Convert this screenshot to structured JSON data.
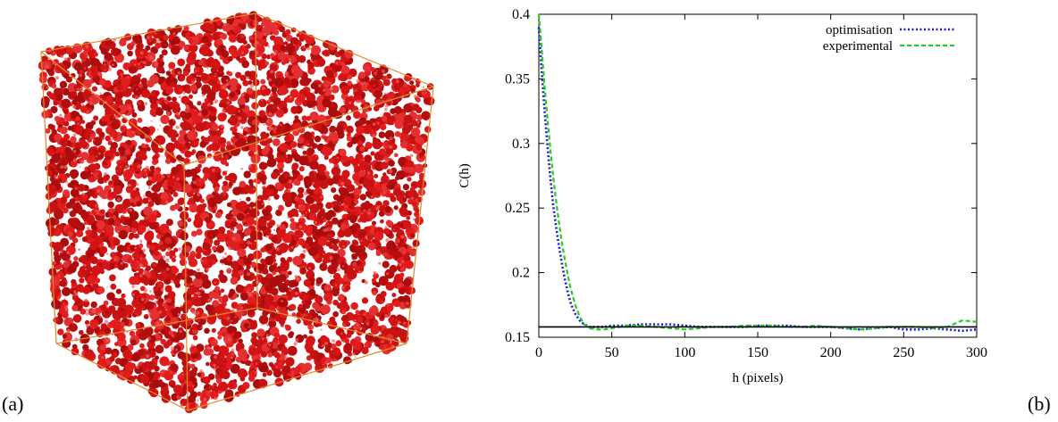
{
  "panels": {
    "a_label": "(a)",
    "b_label": "(b)"
  },
  "render": {
    "subject": "3d-porous-microstructure-cube",
    "fill_color": "#d41414",
    "edge_color": "#e08a2c"
  },
  "chart_data": {
    "type": "line",
    "xlabel": "h (pixels)",
    "ylabel": "C(h)",
    "xlim": [
      0,
      300
    ],
    "ylim": [
      0.15,
      0.4
    ],
    "xticks": [
      0,
      50,
      100,
      150,
      200,
      250,
      300
    ],
    "yticks": [
      0.15,
      0.2,
      0.25,
      0.3,
      0.35,
      0.4
    ],
    "ytick_labels": [
      "0.15",
      "0.2",
      "0.25",
      "0.3",
      "0.35",
      "0.4"
    ],
    "legend_position": "top-right",
    "series": [
      {
        "name": "optimisation",
        "color": "#1a1ad0",
        "dash": "dotted",
        "x": [
          0,
          2,
          4,
          6,
          8,
          10,
          12,
          14,
          16,
          18,
          20,
          22,
          25,
          28,
          31,
          35,
          40,
          45,
          50,
          60,
          70,
          80,
          90,
          100,
          110,
          120,
          130,
          140,
          150,
          160,
          170,
          180,
          190,
          200,
          210,
          220,
          230,
          240,
          250,
          260,
          270,
          280,
          290,
          300
        ],
        "y": [
          0.39,
          0.355,
          0.325,
          0.297,
          0.272,
          0.251,
          0.234,
          0.219,
          0.206,
          0.194,
          0.184,
          0.176,
          0.168,
          0.163,
          0.16,
          0.158,
          0.158,
          0.158,
          0.159,
          0.159,
          0.16,
          0.16,
          0.16,
          0.159,
          0.158,
          0.158,
          0.158,
          0.158,
          0.159,
          0.159,
          0.159,
          0.158,
          0.158,
          0.158,
          0.157,
          0.156,
          0.157,
          0.158,
          0.156,
          0.156,
          0.157,
          0.156,
          0.155,
          0.156
        ]
      },
      {
        "name": "experimental",
        "color": "#22cc22",
        "dash": "dashed",
        "x": [
          0,
          2,
          4,
          6,
          8,
          10,
          12,
          14,
          16,
          18,
          20,
          22,
          25,
          28,
          31,
          35,
          40,
          45,
          50,
          60,
          70,
          80,
          90,
          100,
          110,
          120,
          130,
          140,
          150,
          160,
          170,
          180,
          190,
          200,
          210,
          220,
          230,
          240,
          250,
          260,
          270,
          280,
          290,
          300
        ],
        "y": [
          0.4,
          0.372,
          0.344,
          0.318,
          0.294,
          0.273,
          0.254,
          0.237,
          0.222,
          0.209,
          0.197,
          0.187,
          0.175,
          0.166,
          0.16,
          0.157,
          0.156,
          0.156,
          0.157,
          0.159,
          0.159,
          0.158,
          0.157,
          0.156,
          0.157,
          0.158,
          0.158,
          0.159,
          0.159,
          0.159,
          0.158,
          0.158,
          0.159,
          0.158,
          0.157,
          0.156,
          0.157,
          0.158,
          0.158,
          0.158,
          0.157,
          0.158,
          0.163,
          0.162
        ]
      },
      {
        "name": "",
        "color": "#000000",
        "dash": "solid",
        "x": [
          0,
          300
        ],
        "y": [
          0.158,
          0.158
        ]
      }
    ]
  }
}
